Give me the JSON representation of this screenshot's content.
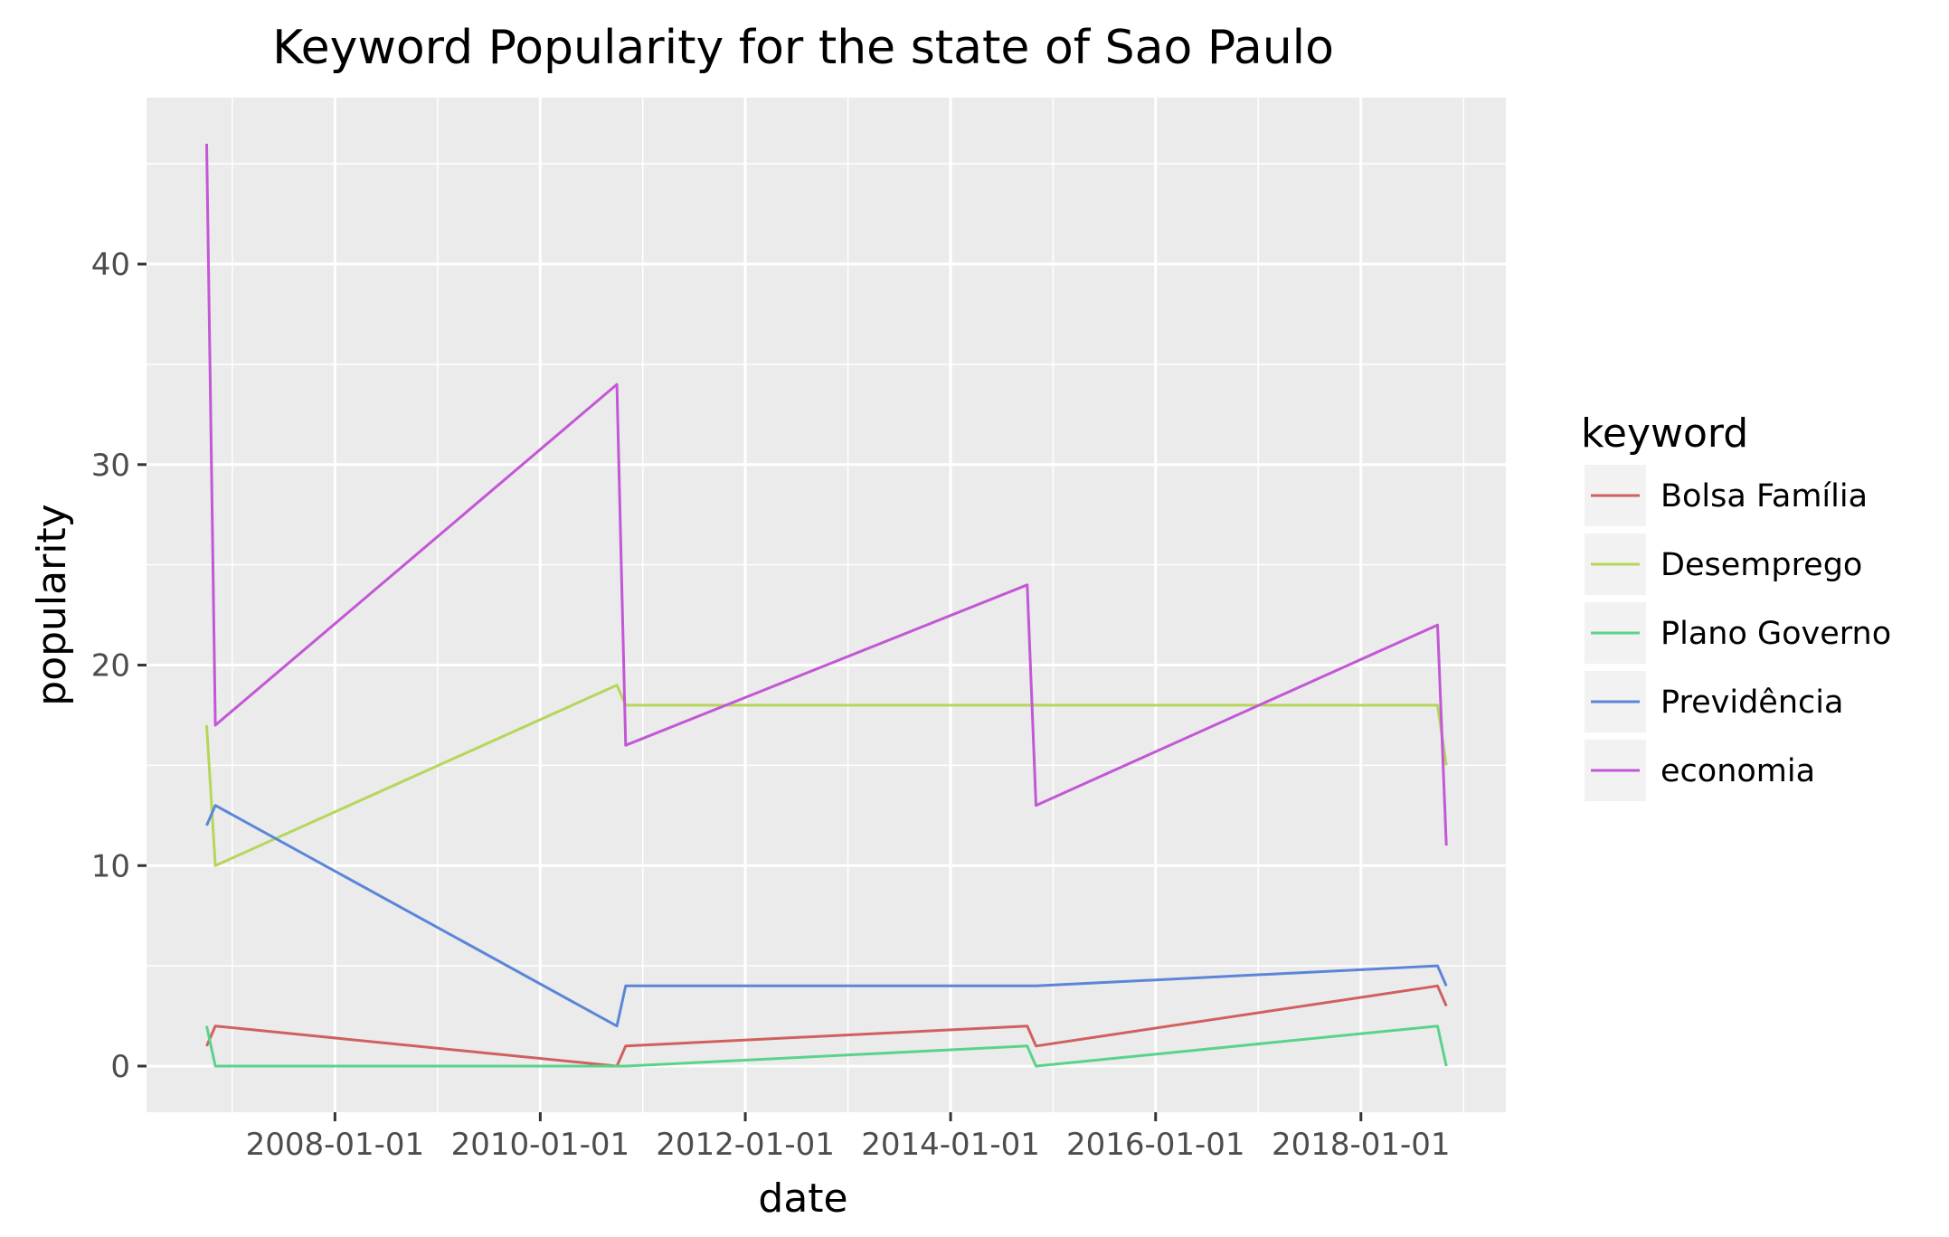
{
  "chart_data": {
    "type": "line",
    "title": "Keyword Popularity for the state of Sao Paulo",
    "xlabel": "date",
    "ylabel": "popularity",
    "x": [
      "2006-10-01",
      "2006-11-01",
      "2010-10-01",
      "2010-11-01",
      "2014-10-01",
      "2014-11-01",
      "2018-10-01",
      "2018-11-01"
    ],
    "xlim": [
      "2006-03-01",
      "2019-06-01"
    ],
    "ylim": [
      -2.3,
      48.3
    ],
    "xticks": [
      "2008-01-01",
      "2010-01-01",
      "2012-01-01",
      "2014-01-01",
      "2016-01-01",
      "2018-01-01"
    ],
    "yticks": [
      0,
      10,
      20,
      30,
      40
    ],
    "grid": true,
    "legend": {
      "title": "keyword",
      "position": "right"
    },
    "series": [
      {
        "name": "Bolsa Família",
        "color": "#d0605f",
        "values": [
          1,
          2,
          0,
          1,
          2,
          1,
          4,
          3
        ]
      },
      {
        "name": "Desemprego",
        "color": "#b5d65a",
        "values": [
          17,
          10,
          19,
          18,
          18,
          18,
          18,
          15
        ]
      },
      {
        "name": "Plano Governo",
        "color": "#5ad38a",
        "values": [
          2,
          0,
          0,
          0,
          1,
          0,
          2,
          0
        ]
      },
      {
        "name": "Previdência",
        "color": "#5b86d8",
        "values": [
          12,
          13,
          2,
          4,
          4,
          4,
          5,
          4
        ]
      },
      {
        "name": "economia",
        "color": "#c357d6",
        "values": [
          46,
          17,
          34,
          16,
          24,
          13,
          22,
          11
        ]
      }
    ]
  }
}
